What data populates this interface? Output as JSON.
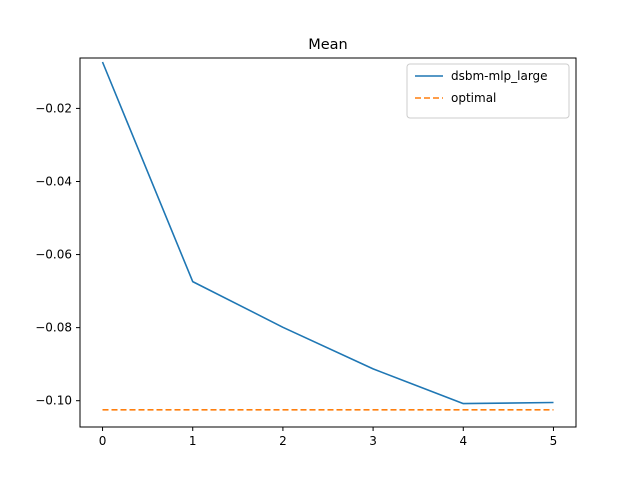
{
  "chart_data": {
    "type": "line",
    "title": "Mean",
    "xlabel": "",
    "ylabel": "",
    "x": [
      0,
      1,
      2,
      3,
      4,
      5
    ],
    "xlim": [
      -0.25,
      5.25
    ],
    "ylim": [
      -0.1072,
      -0.0062
    ],
    "xticks": [
      0,
      1,
      2,
      3,
      4,
      5
    ],
    "yticks": [
      -0.02,
      -0.04,
      -0.06,
      -0.08,
      -0.1
    ],
    "ytick_labels": [
      "−0.02",
      "−0.04",
      "−0.06",
      "−0.08",
      "−0.10"
    ],
    "grid": false,
    "legend_position": "top-right",
    "series": [
      {
        "name": "dsbm-mlp_large",
        "values": [
          -0.0073,
          -0.0674,
          -0.0799,
          -0.0913,
          -0.1008,
          -0.1005
        ],
        "color": "#1f77b4",
        "style": "solid"
      },
      {
        "name": "optimal",
        "values": [
          -0.1025,
          -0.1025,
          -0.1025,
          -0.1025,
          -0.1025,
          -0.1025
        ],
        "color": "#ff7f0e",
        "style": "dashed"
      }
    ]
  }
}
